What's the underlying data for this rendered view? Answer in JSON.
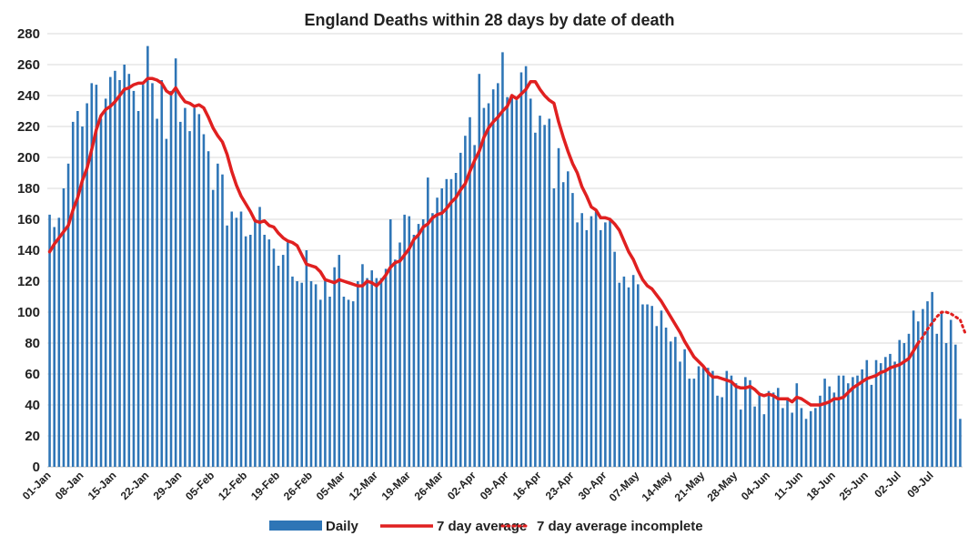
{
  "chart_data": {
    "type": "bar",
    "title": "England Deaths within 28 days by date of death",
    "xlabel": "",
    "ylabel": "",
    "ylim": [
      0,
      280
    ],
    "yticks": [
      0,
      20,
      40,
      60,
      80,
      100,
      120,
      140,
      160,
      180,
      200,
      220,
      240,
      260,
      280
    ],
    "grid": true,
    "legend_position": "bottom",
    "x_tick_labels": [
      "01-Jan",
      "08-Jan",
      "15-Jan",
      "22-Jan",
      "29-Jan",
      "05-Feb",
      "12-Feb",
      "19-Feb",
      "26-Feb",
      "05-Mar",
      "12-Mar",
      "19-Mar",
      "26-Mar",
      "02-Apr",
      "09-Apr",
      "16-Apr",
      "23-Apr",
      "30-Apr",
      "07-May",
      "14-May",
      "21-May",
      "28-May",
      "04-Jun",
      "11-Jun",
      "18-Jun",
      "25-Jun",
      "02-Jul",
      "09-Jul"
    ],
    "colors": {
      "daily": "#2e75b6",
      "avg": "#e02020",
      "avg_incomplete": "#e02020"
    },
    "series": [
      {
        "name": "Daily",
        "kind": "bar",
        "values": [
          163,
          155,
          161,
          180,
          196,
          223,
          230,
          220,
          235,
          248,
          247,
          225,
          238,
          252,
          256,
          250,
          260,
          254,
          243,
          230,
          247,
          272,
          248,
          225,
          250,
          212,
          243,
          264,
          223,
          232,
          217,
          232,
          228,
          215,
          204,
          179,
          196,
          189,
          156,
          165,
          161,
          165,
          149,
          150,
          159,
          168,
          150,
          147,
          141,
          130,
          137,
          145,
          123,
          120,
          119,
          140,
          120,
          118,
          108,
          120,
          110,
          129,
          137,
          110,
          108,
          107,
          120,
          131,
          122,
          127,
          122,
          122,
          128,
          160,
          134,
          145,
          163,
          162,
          150,
          157,
          160,
          187,
          164,
          174,
          180,
          186,
          186,
          190,
          203,
          214,
          226,
          208,
          254,
          232,
          235,
          244,
          248,
          268,
          239,
          240,
          237,
          255,
          259,
          238,
          216,
          227,
          221,
          225,
          180,
          206,
          184,
          191,
          177,
          158,
          164,
          153,
          162,
          165,
          153,
          158,
          160,
          139,
          119,
          123,
          116,
          124,
          118,
          105,
          105,
          104,
          91,
          101,
          90,
          81,
          84,
          68,
          76,
          57,
          57,
          65,
          64,
          64,
          62,
          46,
          45,
          62,
          59,
          54,
          37,
          58,
          56,
          39,
          48,
          34,
          49,
          48,
          51,
          38,
          45,
          35,
          54,
          38,
          31,
          36,
          38,
          46,
          57,
          52,
          48,
          59,
          59,
          54,
          58,
          59,
          63,
          69,
          53,
          69,
          67,
          71,
          73,
          68,
          82,
          80,
          86,
          101,
          94,
          102,
          107,
          113,
          86,
          100,
          80,
          95,
          79,
          31
        ]
      },
      {
        "name": "7 day average",
        "kind": "line",
        "values": [
          139,
          144,
          148,
          152,
          156,
          166,
          174,
          185,
          193,
          205,
          218,
          227,
          231,
          233,
          236,
          240,
          244,
          245,
          247,
          248,
          248,
          251,
          251,
          250,
          248,
          243,
          241,
          245,
          240,
          236,
          235,
          233,
          234,
          232,
          226,
          219,
          214,
          210,
          202,
          191,
          182,
          175,
          170,
          165,
          159,
          158,
          159,
          156,
          155,
          151,
          148,
          146,
          145,
          143,
          137,
          131,
          130,
          129,
          126,
          121,
          120,
          119,
          121,
          120,
          119,
          118,
          117,
          117,
          120,
          119,
          117,
          120,
          124,
          129,
          132,
          133,
          137,
          141,
          147,
          150,
          155,
          157,
          161,
          163,
          164,
          167,
          171,
          174,
          179,
          183,
          191,
          198,
          204,
          213,
          219,
          223,
          226,
          230,
          233,
          240,
          238,
          241,
          244,
          249,
          249,
          244,
          240,
          237,
          235,
          223,
          213,
          204,
          196,
          190,
          181,
          175,
          168,
          166,
          161,
          161,
          160,
          157,
          153,
          146,
          139,
          134,
          127,
          121,
          117,
          115,
          111,
          107,
          102,
          97,
          92,
          87,
          81,
          76,
          71,
          68,
          65,
          61,
          58,
          58,
          57,
          56,
          55,
          52,
          51,
          51,
          52,
          50,
          47,
          46,
          47,
          46,
          44,
          44,
          44,
          42,
          45,
          44,
          42,
          40,
          40,
          40,
          41,
          42,
          44,
          44,
          45,
          48,
          51,
          53,
          55,
          57,
          58,
          59,
          61,
          62,
          64,
          65,
          66,
          68,
          70,
          75,
          80
        ]
      },
      {
        "name": "7 day average incomplete",
        "kind": "dotted-line",
        "start_index": 186,
        "values": [
          80,
          84,
          89,
          93,
          97,
          100,
          100,
          99,
          97,
          95,
          87
        ]
      }
    ]
  }
}
